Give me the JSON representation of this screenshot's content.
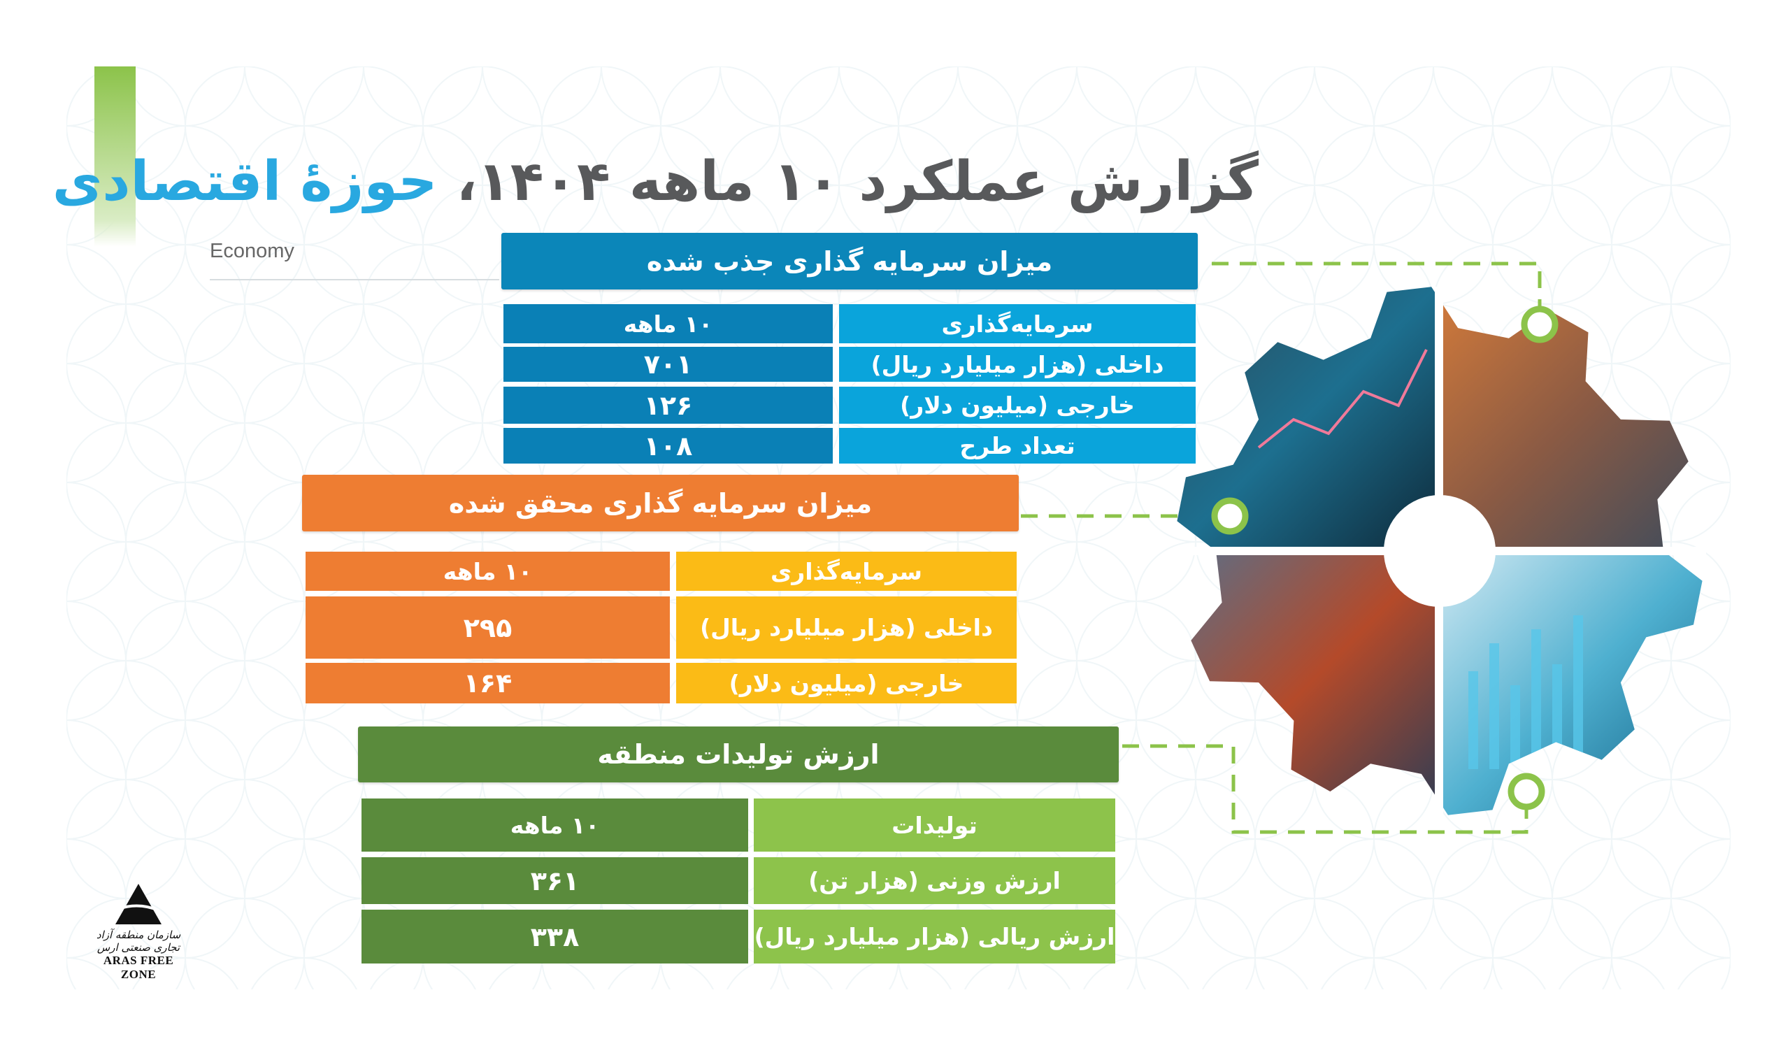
{
  "header": {
    "title_gray": "گزارش عملکرد ۱۰ ماهه ۱۴۰۴،",
    "title_blue": "حوزهٔ اقتصادی",
    "subtitle": "Economy"
  },
  "colors": {
    "title_gray": "#58595b",
    "title_blue": "#29a8e0",
    "blue_header": "#0b86b9",
    "blue_dark": "#0a80b6",
    "blue_light": "#0aa4db",
    "orange": "#ee7d32",
    "yellow": "#fbbb16",
    "green_dark": "#5a8b3c",
    "green_light": "#8dc34b",
    "accent_green": "#8cc34a"
  },
  "attracted": {
    "title": "میزان سرمایه گذاری جذب شده",
    "columns": [
      "سرمایه‌گذاری",
      "۱۰ ماهه"
    ],
    "rows": [
      {
        "label": "داخلی (هزار میلیارد ریال)",
        "value": "۷۰۱"
      },
      {
        "label": "خارجی (میلیون دلار)",
        "value": "۱۲۶"
      },
      {
        "label": "تعداد طرح",
        "value": "۱۰۸"
      }
    ]
  },
  "realized": {
    "title": "میزان سرمایه گذاری محقق شده",
    "columns": [
      "سرمایه‌گذاری",
      "۱۰ ماهه"
    ],
    "rows": [
      {
        "label": "داخلی (هزار میلیارد ریال)",
        "value": "۲۹۵"
      },
      {
        "label": "خارجی (میلیون دلار)",
        "value": "۱۶۴"
      }
    ]
  },
  "production": {
    "title": "ارزش تولیدات منطقه",
    "columns": [
      "تولیدات",
      "۱۰ ماهه"
    ],
    "rows": [
      {
        "label": "ارزش وزنی (هزار تن)",
        "value": "۳۶۱"
      },
      {
        "label": "ارزش ریالی (هزار میلیارد ریال)",
        "value": "۳۳۸"
      }
    ]
  },
  "logo": {
    "text_fa": "سازمان منطقه آزاد تجاری صنعتی ارس",
    "text_en": "ARAS FREE ZONE"
  },
  "illustration": {
    "icon": "gear-icon",
    "quadrants": [
      "stock-chart",
      "shipping-port",
      "container-cranes",
      "digital-analytics"
    ]
  }
}
